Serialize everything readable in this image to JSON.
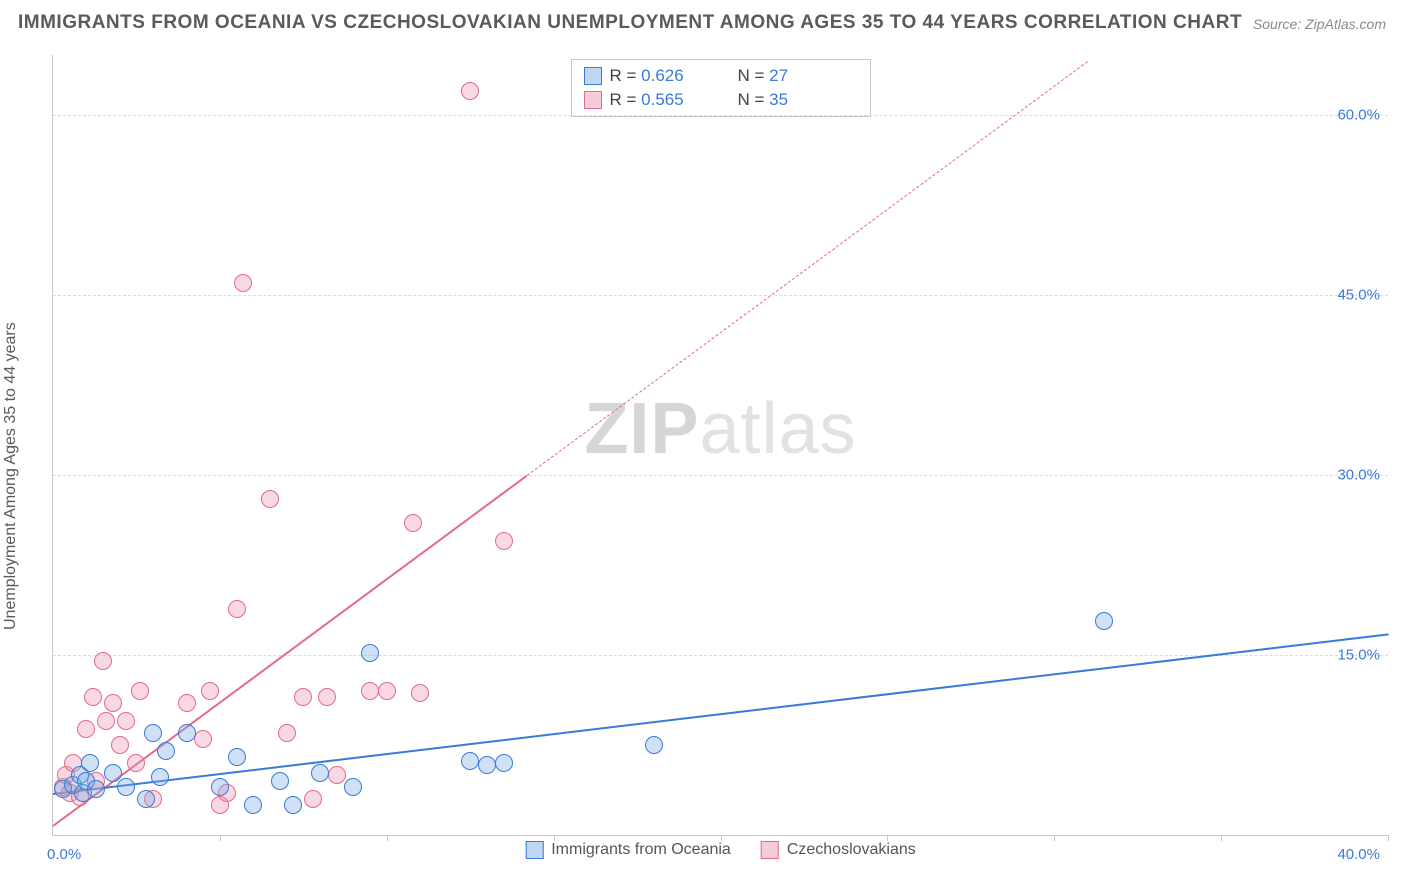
{
  "title": "IMMIGRANTS FROM OCEANIA VS CZECHOSLOVAKIAN UNEMPLOYMENT AMONG AGES 35 TO 44 YEARS CORRELATION CHART",
  "source": "Source: ZipAtlas.com",
  "ylabel": "Unemployment Among Ages 35 to 44 years",
  "watermark_zip": "ZIP",
  "watermark_atlas": "atlas",
  "chart": {
    "type": "scatter",
    "background_color": "#ffffff",
    "grid_color": "#dcdcdc",
    "axis_color": "#c8c8c8",
    "xlim": [
      0,
      40
    ],
    "ylim": [
      0,
      65
    ],
    "x_first_tick_label": "0.0%",
    "x_last_tick_label": "40.0%",
    "x_tick_positions": [
      5,
      10,
      15,
      20,
      25,
      30,
      35,
      40
    ],
    "y_ticks": [
      15,
      30,
      45,
      60
    ],
    "y_tick_labels": [
      "15.0%",
      "30.0%",
      "45.0%",
      "60.0%"
    ],
    "label_color": "#3a7ad9",
    "title_color": "#5a5a5a",
    "title_fontsize": 19,
    "axis_label_fontsize": 16,
    "tick_fontsize": 15,
    "point_radius": 9,
    "point_border_width": 1.5,
    "point_fill_opacity": 0.25,
    "series": [
      {
        "name": "Immigrants from Oceania",
        "color_stroke": "#3a7ad9",
        "color_fill": "rgba(120,170,230,0.35)",
        "swatch_fill": "#bfd7f2",
        "R": "0.626",
        "N": "27",
        "reg_line": {
          "x1": 0,
          "y1": 3.5,
          "x2": 40,
          "y2": 16.8,
          "style": "solid",
          "width": 2.5
        },
        "points": [
          [
            0.3,
            3.8
          ],
          [
            0.6,
            4.2
          ],
          [
            0.8,
            5.0
          ],
          [
            0.9,
            3.5
          ],
          [
            1.0,
            4.5
          ],
          [
            1.1,
            6.0
          ],
          [
            1.3,
            3.8
          ],
          [
            1.8,
            5.2
          ],
          [
            2.2,
            4.0
          ],
          [
            2.8,
            3.0
          ],
          [
            3.0,
            8.5
          ],
          [
            3.2,
            4.8
          ],
          [
            3.4,
            7.0
          ],
          [
            4.0,
            8.5
          ],
          [
            5.0,
            4.0
          ],
          [
            5.5,
            6.5
          ],
          [
            6.0,
            2.5
          ],
          [
            6.8,
            4.5
          ],
          [
            7.2,
            2.5
          ],
          [
            8.0,
            5.2
          ],
          [
            9.0,
            4.0
          ],
          [
            9.5,
            15.2
          ],
          [
            12.5,
            6.2
          ],
          [
            13.0,
            5.8
          ],
          [
            13.5,
            6.0
          ],
          [
            18.0,
            7.5
          ],
          [
            31.5,
            17.8
          ]
        ]
      },
      {
        "name": "Czechoslovakians",
        "color_stroke": "#e46a8a",
        "color_fill": "rgba(235,145,175,0.35)",
        "swatch_fill": "#f4cdd8",
        "R": "0.565",
        "N": "35",
        "reg_line": {
          "x1": 0,
          "y1": 0.8,
          "x2": 14.2,
          "y2": 30.0,
          "style": "solid",
          "width": 2.2
        },
        "reg_line_dashed": {
          "x1": 14.2,
          "y1": 30.0,
          "x2": 31.0,
          "y2": 64.5,
          "width": 1.6
        },
        "points": [
          [
            0.3,
            4.0
          ],
          [
            0.4,
            5.0
          ],
          [
            0.5,
            3.5
          ],
          [
            0.6,
            6.0
          ],
          [
            0.8,
            3.2
          ],
          [
            1.0,
            8.8
          ],
          [
            1.2,
            11.5
          ],
          [
            1.3,
            4.5
          ],
          [
            1.5,
            14.5
          ],
          [
            1.6,
            9.5
          ],
          [
            1.8,
            11.0
          ],
          [
            2.0,
            7.5
          ],
          [
            2.2,
            9.5
          ],
          [
            2.5,
            6.0
          ],
          [
            2.6,
            12.0
          ],
          [
            3.0,
            3.0
          ],
          [
            4.0,
            11.0
          ],
          [
            4.5,
            8.0
          ],
          [
            4.7,
            12.0
          ],
          [
            5.0,
            2.5
          ],
          [
            5.2,
            3.5
          ],
          [
            5.5,
            18.8
          ],
          [
            5.7,
            46.0
          ],
          [
            6.5,
            28.0
          ],
          [
            7.0,
            8.5
          ],
          [
            7.5,
            11.5
          ],
          [
            8.2,
            11.5
          ],
          [
            8.5,
            5.0
          ],
          [
            9.5,
            12.0
          ],
          [
            10.0,
            12.0
          ],
          [
            10.8,
            26.0
          ],
          [
            11.0,
            11.8
          ],
          [
            12.5,
            62.0
          ],
          [
            13.5,
            24.5
          ],
          [
            7.8,
            3.0
          ]
        ]
      }
    ],
    "legend_top": {
      "R_label": "R =",
      "N_label": "N ="
    },
    "legend_bottom": {
      "series1_label": "Immigrants from Oceania",
      "series2_label": "Czechoslovakians"
    }
  }
}
